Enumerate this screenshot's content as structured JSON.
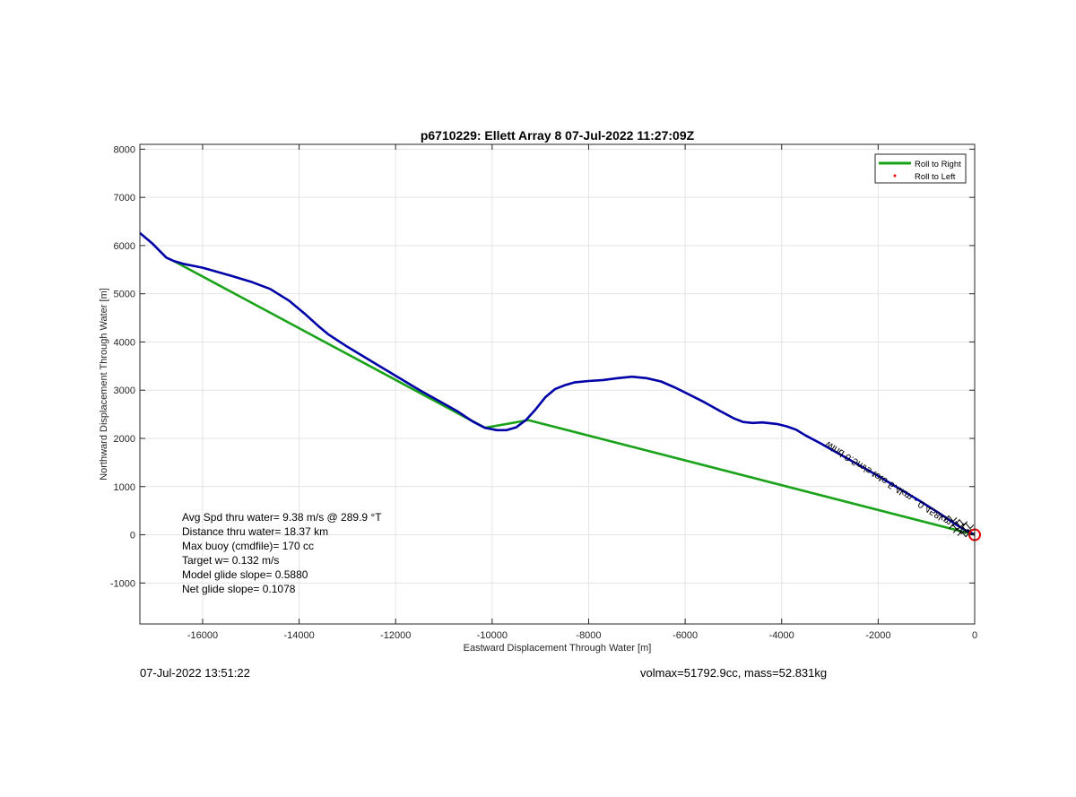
{
  "chart_data": {
    "type": "line",
    "title": "p6710229: Ellett Array 8 07-Jul-2022 11:27:09Z",
    "xlabel": "Eastward Displacement Through Water [m]",
    "ylabel": "Northward Displacement Through Water [m]",
    "xlim": [
      -17300,
      0
    ],
    "ylim": [
      -1850,
      8100
    ],
    "xticks": [
      -16000,
      -14000,
      -12000,
      -10000,
      -8000,
      -6000,
      -4000,
      -2000,
      0
    ],
    "yticks": [
      -1000,
      0,
      1000,
      2000,
      3000,
      4000,
      5000,
      6000,
      7000,
      8000
    ],
    "grid": true,
    "legend_position": "top-right",
    "legend": [
      {
        "label": "Roll to Right",
        "color": "#1aa31a",
        "marker": "line"
      },
      {
        "label": "Roll to Left",
        "color": "#ff0000",
        "marker": "point"
      }
    ],
    "series": [
      {
        "name": "Roll to Right",
        "color": "#1aa31a",
        "x": [
          -16600,
          -10150,
          -9250,
          0
        ],
        "y": [
          5680,
          2220,
          2380,
          0
        ]
      },
      {
        "color": "#0000a8",
        "x": [
          -17300,
          -17050,
          -16900,
          -16750,
          -16600,
          -16400,
          -16000,
          -15500,
          -15000,
          -14600,
          -14200,
          -13900,
          -13600,
          -13400,
          -13000,
          -12500,
          -12000,
          -11500,
          -11000,
          -10700,
          -10400,
          -10150,
          -9900,
          -9700,
          -9500,
          -9300,
          -9100,
          -8900,
          -8700,
          -8500,
          -8300,
          -8000,
          -7700,
          -7400,
          -7100,
          -6800,
          -6500,
          -6200,
          -5900,
          -5600,
          -5300,
          -5000,
          -4800,
          -4600,
          -4400,
          -4100,
          -3900,
          -3700,
          -3500,
          -3200,
          -2900,
          -2600,
          -2300,
          -2000,
          -1700,
          -1400,
          -1100,
          -800,
          -600,
          -400,
          -200,
          0
        ],
        "y": [
          6260,
          6050,
          5900,
          5750,
          5680,
          5620,
          5540,
          5400,
          5250,
          5100,
          4850,
          4600,
          4330,
          4160,
          3900,
          3600,
          3300,
          3000,
          2720,
          2550,
          2350,
          2220,
          2170,
          2170,
          2230,
          2380,
          2600,
          2850,
          3020,
          3100,
          3160,
          3190,
          3210,
          3250,
          3280,
          3250,
          3180,
          3050,
          2900,
          2750,
          2580,
          2420,
          2340,
          2320,
          2330,
          2300,
          2250,
          2180,
          2060,
          1900,
          1730,
          1560,
          1390,
          1220,
          1040,
          860,
          680,
          490,
          360,
          220,
          100,
          0
        ]
      }
    ],
    "annotations": [
      "Avg Spd thru water=  9.38 m/s @ 289.9 °T",
      "Distance thru water= 18.37 km",
      "Max buoy (cmdfile)= 170 cc",
      "Target w= 0.132 m/s",
      "Model glide slope= 0.5880",
      "Net glide slope= 0.1078"
    ],
    "track_label": "wind 0.5m/s toto 5.4km - 0.458km",
    "end_marker": {
      "x": 0,
      "y": 0,
      "color": "#e00000"
    }
  },
  "footer": {
    "timestamp": "07-Jul-2022 13:51:22",
    "mass_info": "volmax=51792.9cc, mass=52.831kg"
  }
}
